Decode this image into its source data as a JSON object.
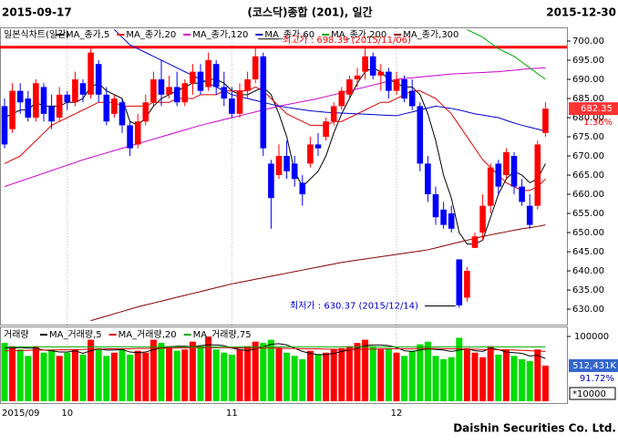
{
  "chart_data": {
    "type": "candlestick",
    "header": {
      "start": "2015-09-17",
      "title": "(코스닥)종합 (201), 일간",
      "end": "2015-12-30"
    },
    "chart_label": "일본식차트(일간)",
    "categories": [
      "2015/09",
      null,
      null,
      null,
      null,
      null,
      null,
      null,
      "10",
      null,
      null,
      null,
      null,
      null,
      null,
      null,
      null,
      null,
      null,
      null,
      null,
      null,
      null,
      null,
      null,
      null,
      null,
      null,
      null,
      "11",
      null,
      null,
      null,
      null,
      null,
      null,
      null,
      null,
      null,
      null,
      null,
      null,
      null,
      null,
      null,
      null,
      null,
      null,
      null,
      null,
      "12",
      null,
      null,
      null,
      null,
      null,
      null,
      null,
      null,
      null,
      null,
      null,
      null,
      null,
      null,
      null,
      null,
      null,
      null,
      null
    ],
    "open": [
      683,
      677,
      687,
      685,
      680,
      688,
      683,
      680,
      686,
      684,
      689,
      686,
      694,
      686,
      681,
      684,
      678,
      673,
      679,
      684,
      690,
      686,
      688,
      684,
      689,
      692,
      688,
      694,
      688,
      685,
      681,
      687,
      690,
      696,
      668,
      665,
      670,
      668,
      663,
      668,
      673,
      675,
      679,
      683,
      686,
      690,
      692,
      696,
      691,
      692,
      687,
      690,
      687,
      683,
      668,
      660,
      656,
      655,
      643,
      633,
      646,
      650,
      657,
      668,
      665,
      670,
      662,
      657,
      657,
      676
    ],
    "high": [
      685,
      689,
      689,
      687,
      690,
      689,
      686,
      688,
      687,
      692,
      690,
      698,
      695,
      688,
      686,
      685,
      679,
      681,
      686,
      692,
      695,
      691,
      692,
      690,
      694,
      694,
      697,
      695,
      692,
      688,
      689,
      692,
      698.39,
      697,
      669,
      673,
      674,
      670,
      665,
      675,
      676,
      680,
      684,
      688,
      691,
      693,
      698,
      697,
      694,
      693,
      692,
      691,
      690,
      684,
      670,
      662,
      658,
      657,
      643,
      641,
      650,
      660,
      668,
      669,
      672,
      671,
      664,
      660,
      674,
      684
    ],
    "low": [
      672,
      676,
      681,
      679,
      679,
      679,
      677,
      679,
      682,
      683,
      684,
      685,
      684,
      678,
      680,
      676,
      670,
      672,
      678,
      683,
      683,
      685,
      683,
      683,
      686,
      686,
      687,
      686,
      683,
      680,
      680,
      685,
      689,
      670,
      651,
      664,
      664,
      662,
      657,
      667,
      670,
      674,
      678,
      682,
      685,
      688,
      690,
      690,
      687,
      685,
      686,
      684,
      682,
      666,
      658,
      652,
      651,
      650,
      630.37,
      632,
      646,
      648,
      655,
      660,
      664,
      660,
      657,
      651,
      656,
      675
    ],
    "close": [
      673,
      687,
      684,
      680,
      689,
      681,
      679,
      686,
      684,
      690,
      686,
      697,
      686,
      679,
      685,
      678,
      672,
      679,
      684,
      690,
      686,
      688,
      684,
      689,
      692,
      687,
      695,
      688,
      685,
      681,
      687,
      690,
      696,
      672,
      659,
      670,
      666,
      664,
      660,
      673,
      672,
      679,
      683,
      687,
      690,
      691,
      696,
      691,
      692,
      687,
      690,
      685,
      683,
      668,
      660,
      654,
      652,
      651,
      631,
      640,
      649,
      657,
      667,
      662,
      671,
      662,
      658,
      652,
      673,
      682.35
    ],
    "up_color": "#ff0000",
    "down_color": "#0000ff",
    "series": [
      {
        "name": "MA_종가,5",
        "color": "#000000",
        "values": [
          680,
          681,
          682,
          682,
          684,
          683,
          683,
          683,
          684,
          684,
          685,
          688,
          689,
          687,
          686,
          685,
          679,
          678,
          680,
          683,
          685,
          686,
          687,
          688,
          689,
          689,
          690,
          690,
          689,
          687,
          686,
          686,
          687,
          688,
          686,
          681,
          675,
          666,
          662,
          664,
          666,
          670,
          676,
          681,
          685,
          689,
          692,
          693,
          692,
          690,
          689,
          688,
          688,
          686,
          681,
          674,
          665,
          659,
          650,
          647,
          647,
          648,
          654,
          660,
          664,
          666,
          665,
          663,
          664,
          668
        ]
      },
      {
        "name": "MA_종가,20",
        "color": "#e00000",
        "values": [
          668,
          669,
          670,
          672,
          674,
          676,
          678,
          679,
          680,
          681,
          682,
          683,
          684,
          684,
          684,
          683,
          683,
          683,
          683,
          684,
          684,
          684,
          685,
          685,
          685,
          686,
          686,
          686,
          687,
          687,
          687,
          687,
          688,
          687,
          685,
          683,
          681,
          680,
          679,
          678,
          678,
          678,
          679,
          679,
          680,
          681,
          682,
          683,
          684,
          684,
          685,
          686,
          687,
          687,
          686,
          685,
          683,
          681,
          678,
          675,
          672,
          669,
          667,
          665,
          663,
          662,
          661,
          661,
          662,
          664
        ]
      },
      {
        "name": "MA_종가,120",
        "color": "#cc00cc",
        "values": [
          662,
          662.7,
          663.4,
          664.1,
          664.8,
          665.5,
          666.2,
          666.9,
          667.6,
          668.3,
          669,
          669.6,
          670.2,
          670.8,
          671.4,
          672,
          672.6,
          673.2,
          673.8,
          674.4,
          675,
          675.6,
          676.2,
          676.8,
          677.4,
          678,
          678.5,
          679,
          679.5,
          680,
          680.5,
          681,
          681.5,
          682,
          682.5,
          683,
          683.4,
          683.8,
          684.2,
          684.6,
          685,
          685.5,
          686,
          686.5,
          687,
          687.5,
          688,
          688.5,
          689,
          689.5,
          690,
          690.2,
          690.4,
          690.6,
          690.8,
          691,
          691.2,
          691.4,
          691.5,
          691.6,
          691.7,
          691.8,
          691.9,
          692,
          692.2,
          692.4,
          692.6,
          692.8,
          692.9,
          693
        ]
      },
      {
        "name": "MA_종가,60",
        "color": "#0000cc",
        "values": [
          null,
          null,
          null,
          null,
          null,
          null,
          null,
          null,
          null,
          null,
          null,
          null,
          null,
          null,
          703,
          701,
          699,
          698,
          697,
          696,
          695,
          694,
          693,
          692,
          691,
          690,
          689,
          688,
          687,
          686,
          685.5,
          685,
          684.5,
          684,
          683.5,
          683,
          682.7,
          682.4,
          682.1,
          681.8,
          681.6,
          681.4,
          681.3,
          681.2,
          681.1,
          681,
          680.9,
          680.8,
          680.7,
          680.6,
          680.5,
          681,
          681.5,
          682,
          682.5,
          683,
          682.7,
          682.4,
          682,
          681.5,
          681,
          680.7,
          680.3,
          680,
          679.3,
          678.6,
          678,
          677.5,
          677,
          676.5
        ]
      },
      {
        "name": "MA_종가,200",
        "color": "#00aa00",
        "values": [
          null,
          null,
          null,
          null,
          null,
          null,
          null,
          null,
          null,
          null,
          null,
          null,
          null,
          null,
          null,
          null,
          null,
          null,
          null,
          null,
          null,
          null,
          null,
          null,
          null,
          null,
          null,
          null,
          null,
          null,
          null,
          null,
          null,
          null,
          null,
          null,
          null,
          null,
          null,
          null,
          null,
          null,
          null,
          null,
          null,
          null,
          null,
          null,
          null,
          null,
          null,
          null,
          null,
          null,
          null,
          null,
          null,
          null,
          null,
          703,
          702,
          701,
          699.5,
          698,
          697,
          696,
          694.5,
          693,
          691.5,
          690
        ]
      },
      {
        "name": "MA_종가,300",
        "color": "#880000",
        "values": [
          null,
          null,
          null,
          null,
          null,
          null,
          null,
          null,
          null,
          null,
          null,
          627,
          627.6,
          628.2,
          628.8,
          629.4,
          630,
          630.6,
          631.1,
          631.6,
          632.1,
          632.6,
          633.1,
          633.6,
          634.1,
          634.6,
          635.1,
          635.6,
          636.1,
          636.6,
          637,
          637.4,
          637.8,
          638.2,
          638.6,
          639,
          639.4,
          639.8,
          640.2,
          640.6,
          641,
          641.4,
          641.8,
          642.2,
          642.5,
          642.8,
          643.1,
          643.4,
          643.7,
          644,
          644.3,
          644.6,
          644.9,
          645.2,
          645.5,
          646,
          646.5,
          647,
          647.5,
          648,
          648.5,
          649,
          649.4,
          649.8,
          650.2,
          650.6,
          651,
          651.3,
          651.6,
          652
        ]
      }
    ],
    "ylim": [
      626.2,
      703.1
    ],
    "yticks": [
      {
        "value": 630,
        "label": "630.00"
      },
      {
        "value": 635,
        "label": "635.00"
      },
      {
        "value": 640,
        "label": "640.00"
      },
      {
        "value": 645,
        "label": "645.00"
      },
      {
        "value": 650,
        "label": "650.00"
      },
      {
        "value": 655,
        "label": "655.00"
      },
      {
        "value": 660,
        "label": "660.00"
      },
      {
        "value": 665,
        "label": "665.00"
      },
      {
        "value": 670,
        "label": "670.00"
      },
      {
        "value": 675,
        "label": "675.00"
      },
      {
        "value": 680,
        "label": "680.00"
      },
      {
        "value": 685,
        "label": "685.00"
      },
      {
        "value": 690,
        "label": "690.00"
      },
      {
        "value": 695,
        "label": "695.00"
      },
      {
        "value": 700,
        "label": "700.00"
      }
    ],
    "high_value": 698.39,
    "annotations": {
      "high": "최고가 : 698.39 (2015/11/06)",
      "low": "최저가 : 630.37 (2015/12/14)",
      "last_price": "682.35",
      "change": "1.36%"
    },
    "volume": {
      "name": "거래량",
      "up_color": "#ff0000",
      "down_color": "#00dd00",
      "values": [
        90000,
        85000,
        80000,
        70000,
        85000,
        75000,
        80000,
        70000,
        75000,
        80000,
        72000,
        95000,
        82000,
        70000,
        75000,
        80000,
        72000,
        78000,
        75000,
        95000,
        90000,
        85000,
        78000,
        80000,
        92000,
        85000,
        100000,
        80000,
        75000,
        72000,
        80000,
        85000,
        92000,
        90000,
        95000,
        82000,
        75000,
        70000,
        65000,
        78000,
        72000,
        75000,
        80000,
        82000,
        85000,
        90000,
        95000,
        85000,
        80000,
        82000,
        75000,
        70000,
        78000,
        88000,
        92000,
        70000,
        65000,
        68000,
        98000,
        82000,
        75000,
        68000,
        85000,
        72000,
        80000,
        70000,
        65000,
        62000,
        80000,
        55000
      ],
      "series": [
        {
          "name": "MA_거래량,5",
          "color": "#000000",
          "values": [
            82000,
            82000,
            83000,
            82000,
            82000,
            79000,
            78000,
            76000,
            76000,
            78000,
            74000,
            78000,
            81000,
            79000,
            79000,
            80000,
            76000,
            75000,
            76000,
            80000,
            82000,
            84000,
            85000,
            85000,
            84000,
            86000,
            87000,
            87000,
            86000,
            82000,
            80000,
            78000,
            81000,
            84000,
            88000,
            89000,
            87000,
            82000,
            77000,
            74000,
            72000,
            72000,
            74000,
            77000,
            79000,
            82000,
            86000,
            87000,
            87000,
            86000,
            83000,
            78000,
            77000,
            79000,
            81000,
            80000,
            79000,
            77000,
            79000,
            81000,
            78000,
            77000,
            82000,
            80000,
            76000,
            75000,
            74000,
            70000,
            71000,
            66000
          ]
        },
        {
          "name": "MA_거래량,20",
          "color": "#e00000",
          "values": [
            78000,
            78000,
            78500,
            78500,
            79000,
            79000,
            79000,
            79500,
            79500,
            80000,
            80000,
            80500,
            80500,
            81000,
            81000,
            81000,
            81000,
            81500,
            81500,
            82000,
            82000,
            82000,
            82500,
            82500,
            83000,
            83000,
            83000,
            83000,
            83000,
            82500,
            82500,
            82000,
            82000,
            82000,
            82000,
            82000,
            81500,
            81500,
            81000,
            81000,
            81000,
            80500,
            80500,
            80000,
            80000,
            80000,
            80500,
            80500,
            81000,
            81000,
            81000,
            81000,
            81000,
            81500,
            81500,
            81500,
            81000,
            81000,
            81000,
            80500,
            80500,
            80000,
            80000,
            79500,
            79500,
            79000,
            78500,
            78000,
            77500,
            77000
          ]
        },
        {
          "name": "MA_거래량,75",
          "color": "#00aa00",
          "values": [
            84000,
            84000,
            84000,
            84000,
            84000,
            84000,
            84000,
            84000,
            84000,
            84000,
            84000,
            84000,
            84000,
            84000,
            84000,
            84000,
            84000,
            84000,
            84000,
            84000,
            84000,
            84000,
            84000,
            84000,
            84000,
            84000,
            84000,
            84000,
            84000,
            84000,
            84000,
            84000,
            84000,
            84000,
            84000,
            84000,
            84000,
            84000,
            84000,
            84000,
            84000,
            84000,
            84000,
            84000,
            84000,
            84000,
            84000,
            84000,
            84000,
            84000,
            84000,
            84000,
            84000,
            84000,
            84000,
            84000,
            84000,
            84000,
            84000,
            84000,
            84000,
            84000,
            84000,
            84000,
            84000,
            84000,
            84000,
            84000,
            84000,
            84000
          ]
        }
      ],
      "ylim": [
        0,
        112000
      ],
      "yticks": [
        100000
      ],
      "last": "512,431K",
      "ratio": "91.72%",
      "unit": "*10000"
    },
    "footer": "Daishin Securities Co. Ltd.",
    "grid": true
  }
}
